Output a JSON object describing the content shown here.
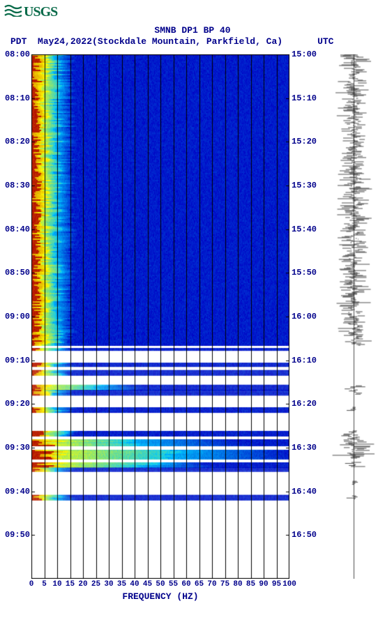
{
  "logo_text": "USGS",
  "logo_color": "#0a6b4a",
  "title": "SMNB DP1 BP 40",
  "date": "May24,2022",
  "location": "(Stockdale Mountain, Parkfield, Ca)",
  "tz_left": "PDT",
  "tz_right": "UTC",
  "xlabel": "FREQUENCY (HZ)",
  "spectrogram": {
    "type": "spectrogram-with-seismogram",
    "xlim": [
      0,
      100
    ],
    "xtick_labels": [
      "0",
      "5",
      "10",
      "15",
      "20",
      "25",
      "30",
      "35",
      "40",
      "45",
      "50",
      "55",
      "60",
      "65",
      "70",
      "75",
      "80",
      "85",
      "90",
      "95",
      "100"
    ],
    "xtick_positions": [
      0,
      5,
      10,
      15,
      20,
      25,
      30,
      35,
      40,
      45,
      50,
      55,
      60,
      65,
      70,
      75,
      80,
      85,
      90,
      95,
      100
    ],
    "left_ticks": [
      "08:00",
      "08:10",
      "08:20",
      "08:30",
      "08:40",
      "08:50",
      "09:00",
      "09:10",
      "09:20",
      "09:30",
      "09:40",
      "09:50"
    ],
    "right_ticks": [
      "15:00",
      "15:10",
      "15:20",
      "15:30",
      "15:40",
      "15:50",
      "16:00",
      "16:10",
      "16:20",
      "16:30",
      "16:40",
      "16:50"
    ],
    "time_fraction_positions": [
      0,
      0.0833,
      0.1667,
      0.25,
      0.3333,
      0.4167,
      0.5,
      0.5833,
      0.6667,
      0.75,
      0.8333,
      0.9167
    ],
    "grid_color": "#000000",
    "background_color": "#ffffff",
    "font_color": "#00008b",
    "fontsize_ticks": 12,
    "fontsize_title": 13,
    "heatmap_palette": {
      "low": "#0000c4",
      "mid1": "#00c6ff",
      "mid2": "#ffff00",
      "high": "#b00000"
    },
    "data_rows": [
      {
        "t0": 0.0,
        "t1": 0.555,
        "edges": [
          0.02,
          0.05,
          0.1,
          0.16
        ],
        "jitter": 0.02
      },
      {
        "t0": 0.555,
        "t1": 0.56,
        "gap": true
      },
      {
        "t0": 0.56,
        "t1": 0.565,
        "edges": [
          0.02,
          0.05,
          0.1,
          0.16
        ],
        "jitter": 0.02
      },
      {
        "t0": 0.565,
        "t1": 0.588,
        "gap": true
      },
      {
        "t0": 0.588,
        "t1": 0.595,
        "edges": [
          0.02,
          0.05,
          0.1,
          0.16
        ],
        "jitter": 0.02
      },
      {
        "t0": 0.595,
        "t1": 0.602,
        "gap": true
      },
      {
        "t0": 0.602,
        "t1": 0.61,
        "edges": [
          0.02,
          0.05,
          0.1,
          0.16
        ],
        "jitter": 0.02
      },
      {
        "t0": 0.61,
        "t1": 0.63,
        "gap": true
      },
      {
        "t0": 0.63,
        "t1": 0.64,
        "edges": [
          0.03,
          0.08,
          0.25,
          0.42
        ],
        "jitter": 0.03
      },
      {
        "t0": 0.64,
        "t1": 0.65,
        "edges": [
          0.02,
          0.05,
          0.1,
          0.16
        ],
        "jitter": 0.02
      },
      {
        "t0": 0.65,
        "t1": 0.673,
        "gap": true
      },
      {
        "t0": 0.673,
        "t1": 0.682,
        "edges": [
          0.02,
          0.05,
          0.1,
          0.16
        ],
        "jitter": 0.02
      },
      {
        "t0": 0.682,
        "t1": 0.718,
        "gap": true
      },
      {
        "t0": 0.718,
        "t1": 0.728,
        "edges": [
          0.03,
          0.06,
          0.12,
          0.18
        ],
        "jitter": 0.02
      },
      {
        "t0": 0.728,
        "t1": 0.734,
        "gap": true
      },
      {
        "t0": 0.734,
        "t1": 0.746,
        "edges": [
          0.05,
          0.1,
          0.4,
          0.8
        ],
        "jitter": 0.05
      },
      {
        "t0": 0.746,
        "t1": 0.754,
        "gap": true
      },
      {
        "t0": 0.754,
        "t1": 0.77,
        "edges": [
          0.05,
          0.1,
          0.55,
          1.0
        ],
        "jitter": 0.04
      },
      {
        "t0": 0.77,
        "t1": 0.778,
        "gap": true
      },
      {
        "t0": 0.778,
        "t1": 0.788,
        "edges": [
          0.04,
          0.1,
          0.45,
          0.7
        ],
        "jitter": 0.05
      },
      {
        "t0": 0.788,
        "t1": 0.794,
        "edges": [
          0.02,
          0.05,
          0.1,
          0.16
        ],
        "jitter": 0.02
      },
      {
        "t0": 0.794,
        "t1": 0.84,
        "gap": true
      },
      {
        "t0": 0.84,
        "t1": 0.848,
        "edges": [
          0.02,
          0.05,
          0.1,
          0.16
        ],
        "jitter": 0.02
      },
      {
        "t0": 0.848,
        "t1": 1.0,
        "gap": true
      }
    ],
    "seismogram": {
      "segments": [
        {
          "t0": 0.0,
          "t1": 0.555,
          "amp": 0.7,
          "dense": true
        },
        {
          "t0": 0.632,
          "t1": 0.64,
          "amp": 0.85
        },
        {
          "t0": 0.64,
          "t1": 0.648,
          "amp": 0.35
        },
        {
          "t0": 0.673,
          "t1": 0.68,
          "amp": 0.4
        },
        {
          "t0": 0.718,
          "t1": 0.726,
          "amp": 0.75
        },
        {
          "t0": 0.726,
          "t1": 0.77,
          "amp": 0.95,
          "dense": true
        },
        {
          "t0": 0.778,
          "t1": 0.788,
          "amp": 0.55
        },
        {
          "t0": 0.814,
          "t1": 0.82,
          "amp": 0.25
        },
        {
          "t0": 0.842,
          "t1": 0.848,
          "amp": 0.35
        }
      ],
      "color": "#000000"
    }
  }
}
